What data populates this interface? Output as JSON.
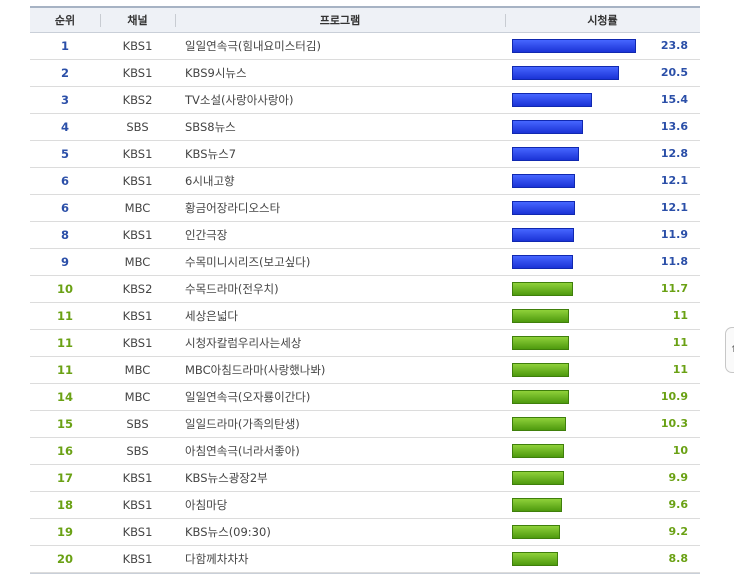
{
  "table": {
    "headers": {
      "rank": "순위",
      "channel": "채널",
      "program": "프로그램",
      "rating": "시청률"
    }
  },
  "chart_data": {
    "type": "table",
    "columns": [
      "순위",
      "채널",
      "프로그램",
      "시청률"
    ],
    "rows": [
      {
        "rank": "1",
        "channel": "KBS1",
        "program": "일일연속극(힘내요미스터김)",
        "rating": 23.8,
        "rating_label": "23.8",
        "color": "#2233dd"
      },
      {
        "rank": "2",
        "channel": "KBS1",
        "program": "KBS9시뉴스",
        "rating": 20.5,
        "rating_label": "20.5",
        "color": "#2233dd"
      },
      {
        "rank": "3",
        "channel": "KBS2",
        "program": "TV소설(사랑아사랑아)",
        "rating": 15.4,
        "rating_label": "15.4",
        "color": "#2233dd"
      },
      {
        "rank": "4",
        "channel": "SBS",
        "program": "SBS8뉴스",
        "rating": 13.6,
        "rating_label": "13.6",
        "color": "#2233dd"
      },
      {
        "rank": "5",
        "channel": "KBS1",
        "program": "KBS뉴스7",
        "rating": 12.8,
        "rating_label": "12.8",
        "color": "#2233dd"
      },
      {
        "rank": "6",
        "channel": "KBS1",
        "program": "6시내고향",
        "rating": 12.1,
        "rating_label": "12.1",
        "color": "#2233dd"
      },
      {
        "rank": "6",
        "channel": "MBC",
        "program": "황금어장라디오스타",
        "rating": 12.1,
        "rating_label": "12.1",
        "color": "#2233dd"
      },
      {
        "rank": "8",
        "channel": "KBS1",
        "program": "인간극장",
        "rating": 11.9,
        "rating_label": "11.9",
        "color": "#2233dd"
      },
      {
        "rank": "9",
        "channel": "MBC",
        "program": "수목미니시리즈(보고싶다)",
        "rating": 11.8,
        "rating_label": "11.8",
        "color": "#2233dd"
      },
      {
        "rank": "10",
        "channel": "KBS2",
        "program": "수목드라마(전우치)",
        "rating": 11.7,
        "rating_label": "11.7",
        "color": "#5fa81a"
      },
      {
        "rank": "11",
        "channel": "KBS1",
        "program": "세상은넓다",
        "rating": 11,
        "rating_label": "11",
        "color": "#5fa81a"
      },
      {
        "rank": "11",
        "channel": "KBS1",
        "program": "시청자칼럼우리사는세상",
        "rating": 11,
        "rating_label": "11",
        "color": "#5fa81a"
      },
      {
        "rank": "11",
        "channel": "MBC",
        "program": "MBC아침드라마(사랑했나봐)",
        "rating": 11,
        "rating_label": "11",
        "color": "#5fa81a"
      },
      {
        "rank": "14",
        "channel": "MBC",
        "program": "일일연속극(오자룡이간다)",
        "rating": 10.9,
        "rating_label": "10.9",
        "color": "#5fa81a"
      },
      {
        "rank": "15",
        "channel": "SBS",
        "program": "일일드라마(가족의탄생)",
        "rating": 10.3,
        "rating_label": "10.3",
        "color": "#5fa81a"
      },
      {
        "rank": "16",
        "channel": "SBS",
        "program": "아침연속극(너라서좋아)",
        "rating": 10,
        "rating_label": "10",
        "color": "#5fa81a"
      },
      {
        "rank": "17",
        "channel": "KBS1",
        "program": "KBS뉴스광장2부",
        "rating": 9.9,
        "rating_label": "9.9",
        "color": "#5fa81a"
      },
      {
        "rank": "18",
        "channel": "KBS1",
        "program": "아침마당",
        "rating": 9.6,
        "rating_label": "9.6",
        "color": "#5fa81a"
      },
      {
        "rank": "19",
        "channel": "KBS1",
        "program": "KBS뉴스(09:30)",
        "rating": 9.2,
        "rating_label": "9.2",
        "color": "#5fa81a"
      },
      {
        "rank": "20",
        "channel": "KBS1",
        "program": "다함께차차차",
        "rating": 8.8,
        "rating_label": "8.8",
        "color": "#5fa81a"
      }
    ],
    "grid": false
  },
  "side_tab": {
    "icon": "scroll-arrow-icon",
    "glyph": "↑"
  }
}
